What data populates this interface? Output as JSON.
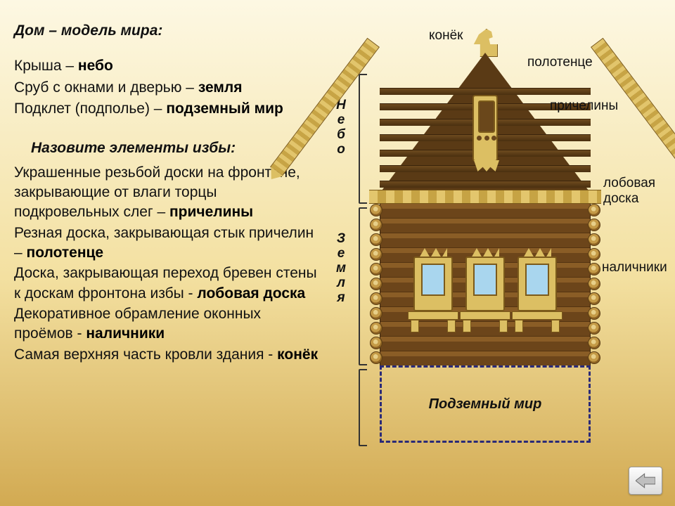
{
  "title": "Дом – модель мира:",
  "lines": {
    "roof_label": "Крыша – ",
    "roof_answer": "небо",
    "wall_label": "Сруб с окнами и дверью – ",
    "wall_answer": "земля",
    "cellar_label": "Подклет (подполье) – ",
    "cellar_answer": "подземный мир"
  },
  "subtitle": "Назовите элементы избы:",
  "paragraphs": [
    {
      "text": "Украшенные резьбой доски на фронтоне, закрывающие от влаги торцы подкровельных слег – ",
      "answer": "причелины"
    },
    {
      "text": "Резная доска, закрывающая стык причелин – ",
      "answer": "полотенце"
    },
    {
      "text": "Доска, закрывающая переход бревен стены к доскам фронтона избы - ",
      "answer": "лобовая доска"
    },
    {
      "text": "Декоративное обрамление оконных проёмов - ",
      "answer": "наличники"
    },
    {
      "text": "Самая верхняя часть кровли здания - ",
      "answer": "конёк"
    }
  ],
  "vertical": {
    "sky": "Небо",
    "earth": "Земля"
  },
  "underground": "Подземный мир",
  "annotations": {
    "konek": "конёк",
    "polotenze": "полотенце",
    "pricheliny": "причелины",
    "lobovaya1": "лобовая",
    "lobovaya2": "доска",
    "nalichniki": "наличники"
  },
  "colors": {
    "bg_top": "#fdf8e3",
    "bg_mid": "#f3e0a0",
    "bg_bot": "#d2aa52",
    "wood_dark": "#5a3a15",
    "wood_mid": "#8a5d26",
    "trim": "#dcbf63",
    "trim_dark": "#c6a344",
    "outline": "#7b5a1b",
    "glass": "#a9d6ee",
    "dash": "#2a2a78",
    "text": "#111111"
  }
}
